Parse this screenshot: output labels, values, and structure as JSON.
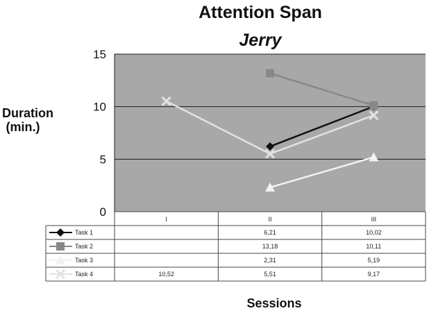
{
  "chart_data": {
    "type": "line",
    "title": "Attention Span",
    "subtitle": "Jerry",
    "xlabel": "Sessions",
    "ylabel": "Duration (min.)",
    "ylim": [
      0,
      15
    ],
    "yticks": [
      "0",
      "5",
      "10",
      "15"
    ],
    "grid": true,
    "legend": "data-table-left",
    "categories": [
      "I",
      "II",
      "III"
    ],
    "series": [
      {
        "name": "Task 1",
        "values": [
          null,
          6.21,
          10.02
        ],
        "labels": [
          "",
          "6,21",
          "10,02"
        ],
        "color": "#111111",
        "marker": "diamond"
      },
      {
        "name": "Task 2",
        "values": [
          null,
          13.18,
          10.11
        ],
        "labels": [
          "",
          "13,18",
          "10,11"
        ],
        "color": "#888888",
        "marker": "square"
      },
      {
        "name": "Task 3",
        "values": [
          null,
          2.31,
          5.19
        ],
        "labels": [
          "",
          "2,31",
          "5,19"
        ],
        "color": "#f2f2f2",
        "marker": "triangle"
      },
      {
        "name": "Task 4",
        "values": [
          10.52,
          5.51,
          9.17
        ],
        "labels": [
          "10,52",
          "5,51",
          "9,17"
        ],
        "color": "#e2e2e2",
        "marker": "x"
      }
    ],
    "colors": {
      "plot_background": "#a8a8a8",
      "grid": "#1a1a1a",
      "table_border": "#444444"
    }
  }
}
